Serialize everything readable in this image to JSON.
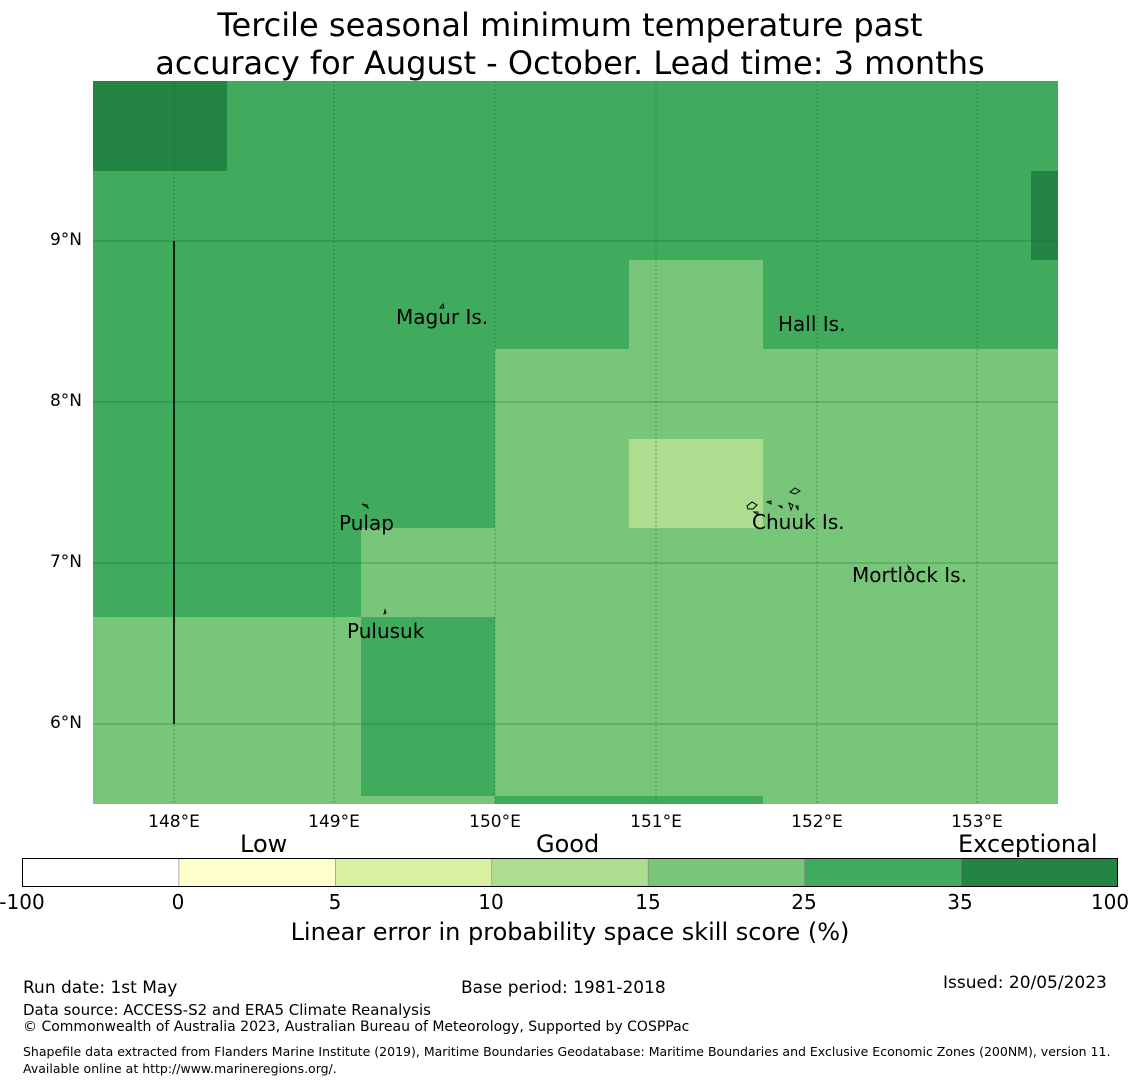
{
  "title_line1": "Tercile seasonal minimum temperature past",
  "title_line2": "accuracy for August - October. Lead time: 3 months",
  "map": {
    "lat_ticks": [
      "9°N",
      "8°N",
      "7°N",
      "6°N"
    ],
    "lon_ticks": [
      "148°E",
      "149°E",
      "150°E",
      "151°E",
      "152°E",
      "153°E"
    ],
    "places": {
      "magur": "Magur Is.",
      "hall": "Hall Is.",
      "pulap": "Pulap",
      "chuuk": "Chuuk Is.",
      "mortlock": "Mortlock Is.",
      "pulusuk": "Pulusuk"
    }
  },
  "legend": {
    "categories": {
      "low": "Low",
      "good": "Good",
      "exceptional": "Exceptional"
    },
    "ticks": [
      "-100",
      "0",
      "5",
      "10",
      "15",
      "25",
      "35",
      "100"
    ],
    "colors": [
      "#ffffff",
      "#ffffcc",
      "#d9f0a3",
      "#addd8e",
      "#78c679",
      "#41ab5d",
      "#238443"
    ],
    "label": "Linear error in probability space skill score (%)"
  },
  "footer": {
    "run_date": "Run date: 1st May",
    "base_period": "Base period: 1981-2018",
    "issued": "Issued: 20/05/2023",
    "data_source": "Data source: ACCESS-S2 and ERA5 Climate Reanalysis",
    "copyright": "© Commonwealth of Australia 2023, Australian Bureau of Meteorology, Supported by COSPPac",
    "shapefile": "Shapefile data extracted from Flanders Marine Institute (2019), Maritime Boundaries Geodatabase: Maritime Boundaries and Exclusive Economic Zones (200NM), version 11. Available online at http://www.marineregions.org/."
  }
}
